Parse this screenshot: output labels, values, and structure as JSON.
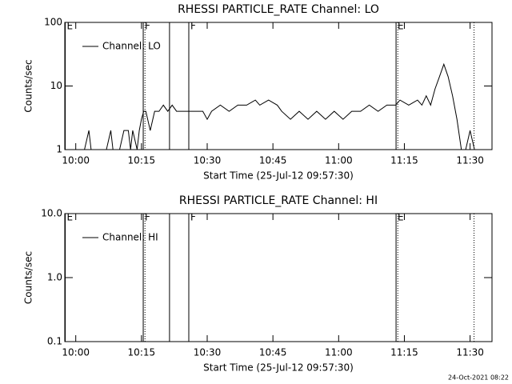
{
  "chart_data": [
    {
      "type": "line",
      "title": "RHESSI PARTICLE_RATE Channel: LO",
      "xlabel": "Start Time (25-Jul-12 09:57:30)",
      "ylabel": "Counts/sec",
      "log_y": true,
      "legend": "upper left",
      "xlim": [
        597.5,
        695
      ],
      "ylim": [
        1,
        100
      ],
      "yticks": [
        1,
        10,
        100
      ],
      "xticks": [
        {
          "value": 600,
          "label": "10:00"
        },
        {
          "value": 615,
          "label": "10:15"
        },
        {
          "value": 630,
          "label": "10:30"
        },
        {
          "value": 645,
          "label": "10:45"
        },
        {
          "value": 660,
          "label": "11:00"
        },
        {
          "value": 675,
          "label": "11:15"
        },
        {
          "value": 690,
          "label": "11:30"
        }
      ],
      "vlines": [
        {
          "x": 597.6,
          "style": "solid",
          "label": "E"
        },
        {
          "x": 615.4,
          "style": "solid",
          "label": "F"
        },
        {
          "x": 615.8,
          "style": "dotted"
        },
        {
          "x": 621.4,
          "style": "solid"
        },
        {
          "x": 625.8,
          "style": "solid",
          "label": "F"
        },
        {
          "x": 673.1,
          "style": "solid",
          "label": "E"
        },
        {
          "x": 673.5,
          "style": "dotted"
        },
        {
          "x": 690.9,
          "style": "dotted"
        }
      ],
      "x": [
        598,
        600,
        602,
        603,
        603.5,
        605,
        607,
        608,
        608.5,
        610,
        611,
        612,
        612.5,
        613,
        614,
        614.5,
        615,
        615.5,
        616,
        617,
        618,
        619,
        620,
        621,
        622,
        623,
        625,
        627,
        629,
        630,
        631,
        633,
        635,
        637,
        639,
        641,
        642,
        644,
        646,
        647,
        649,
        651,
        653,
        655,
        657,
        659,
        661,
        663,
        665,
        667,
        669,
        671,
        673,
        674,
        676,
        678,
        679,
        680,
        681,
        682,
        683,
        684,
        685,
        686,
        687,
        688,
        689,
        690,
        691,
        692
      ],
      "series": [
        {
          "name": "Channel: LO",
          "color": "#000000",
          "values": [
            1,
            1,
            1,
            2,
            1,
            1,
            1,
            2,
            1,
            1,
            2,
            2,
            1,
            2,
            1,
            2,
            3,
            4,
            4,
            2,
            4,
            4,
            5,
            4,
            5,
            4,
            4,
            4,
            4,
            3,
            4,
            5,
            4,
            5,
            5,
            6,
            5,
            6,
            5,
            4,
            3,
            4,
            3,
            4,
            3,
            4,
            3,
            4,
            4,
            5,
            4,
            5,
            5,
            6,
            5,
            6,
            5,
            7,
            5,
            9,
            14,
            22,
            14,
            7,
            3,
            1,
            1,
            2,
            1,
            1
          ]
        }
      ]
    },
    {
      "type": "line",
      "title": "RHESSI PARTICLE_RATE Channel: HI",
      "xlabel": "Start Time (25-Jul-12 09:57:30)",
      "ylabel": "Counts/sec",
      "log_y": true,
      "legend": "upper left",
      "xlim": [
        597.5,
        695
      ],
      "ylim": [
        0.1,
        10
      ],
      "yticks": [
        {
          "value": 0.1,
          "label": "0.1"
        },
        {
          "value": 1,
          "label": "1.0"
        },
        {
          "value": 10,
          "label": "10.0"
        }
      ],
      "xticks": [
        {
          "value": 600,
          "label": "10:00"
        },
        {
          "value": 615,
          "label": "10:15"
        },
        {
          "value": 630,
          "label": "10:30"
        },
        {
          "value": 645,
          "label": "10:45"
        },
        {
          "value": 660,
          "label": "11:00"
        },
        {
          "value": 675,
          "label": "11:15"
        },
        {
          "value": 690,
          "label": "11:30"
        }
      ],
      "vlines": [
        {
          "x": 597.6,
          "style": "solid",
          "label": "E"
        },
        {
          "x": 615.4,
          "style": "solid",
          "label": "F"
        },
        {
          "x": 615.8,
          "style": "dotted"
        },
        {
          "x": 621.4,
          "style": "solid"
        },
        {
          "x": 625.8,
          "style": "solid",
          "label": "F"
        },
        {
          "x": 673.1,
          "style": "solid",
          "label": "E"
        },
        {
          "x": 673.5,
          "style": "dotted"
        },
        {
          "x": 690.9,
          "style": "dotted"
        }
      ],
      "x": [],
      "series": [
        {
          "name": "Channel: HI",
          "color": "#000000",
          "values": []
        }
      ]
    }
  ],
  "footer": "24-Oct-2021 08:22"
}
